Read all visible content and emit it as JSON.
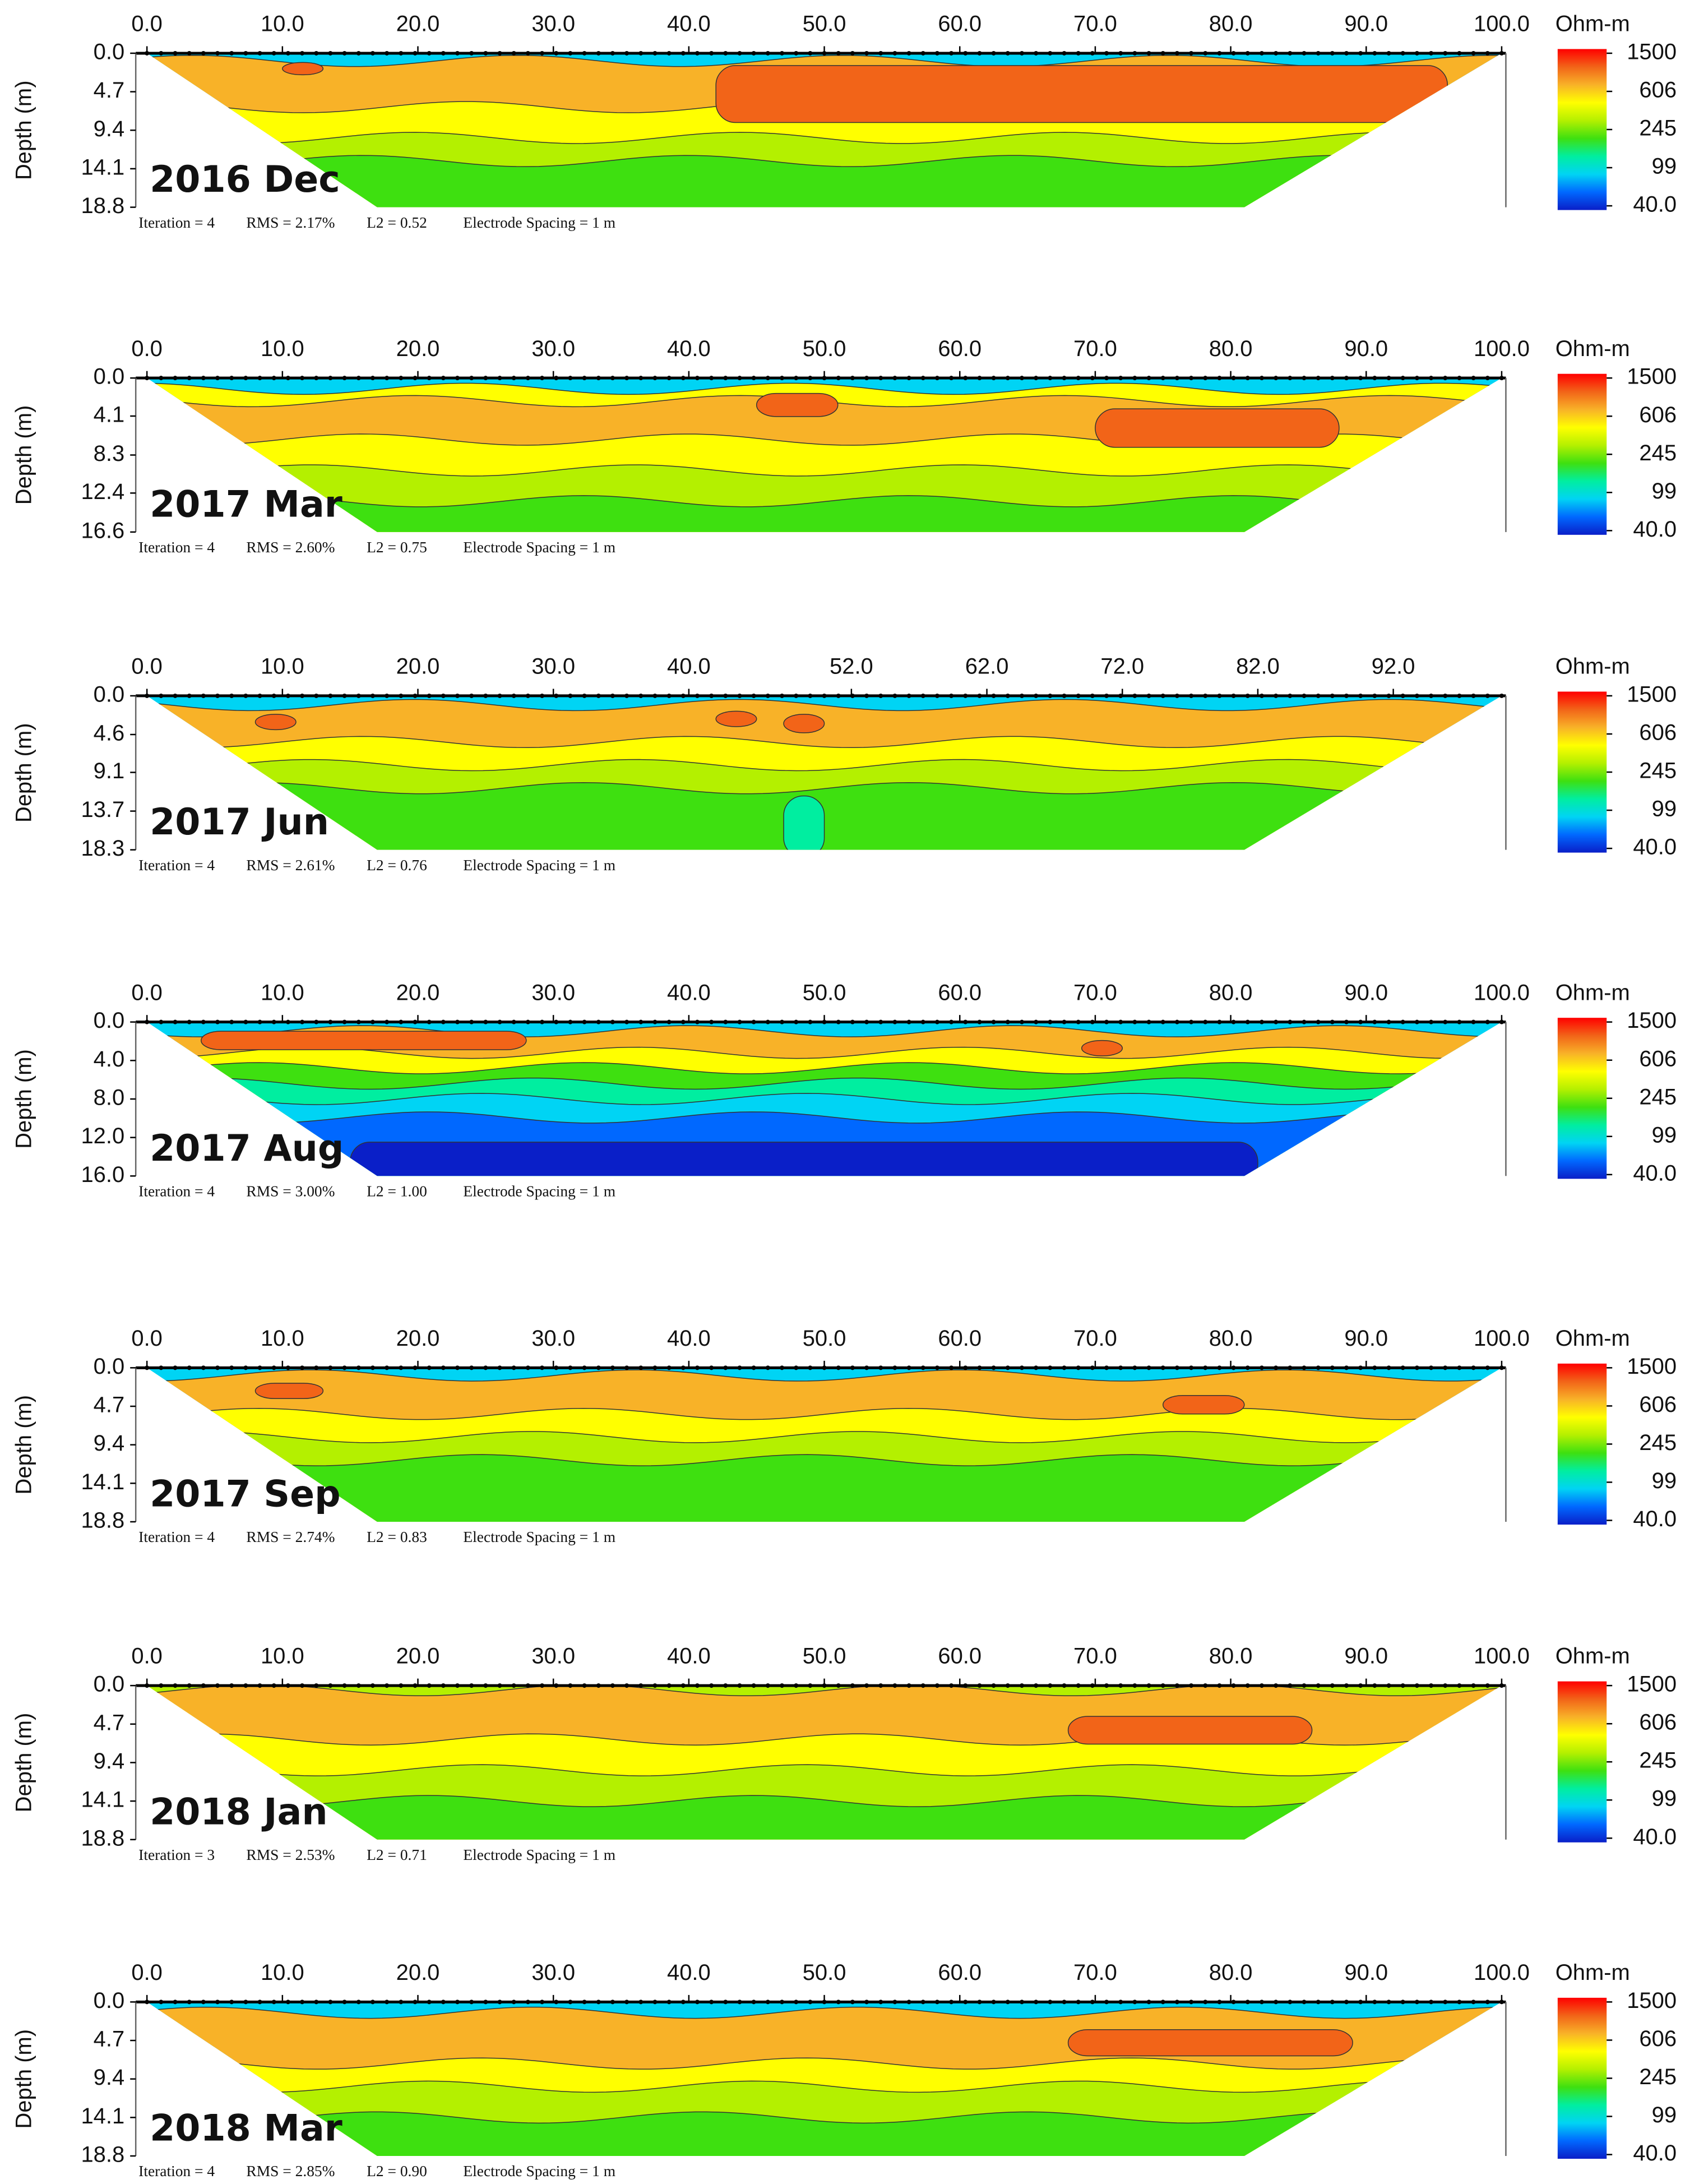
{
  "chart_data": [
    {
      "type": "contour",
      "title": "2016 Dec",
      "y_label": "Depth (m)",
      "xlim": [
        0,
        100
      ],
      "ylim": [
        0,
        18.8
      ],
      "xticks": [
        {
          "value": 0,
          "label": "0.0"
        },
        {
          "value": 10,
          "label": "10.0"
        },
        {
          "value": 20,
          "label": "20.0"
        },
        {
          "value": 30,
          "label": "30.0"
        },
        {
          "value": 40,
          "label": "40.0"
        },
        {
          "value": 50,
          "label": "50.0"
        },
        {
          "value": 60,
          "label": "60.0"
        },
        {
          "value": 70,
          "label": "70.0"
        },
        {
          "value": 80,
          "label": "80.0"
        },
        {
          "value": 90,
          "label": "90.0"
        },
        {
          "value": 100,
          "label": "100.0"
        }
      ],
      "yticks": [
        {
          "value": 0,
          "label": "0.0"
        },
        4.7,
        9.4,
        14.1,
        18.8
      ],
      "footnote": [
        "Iteration = 4",
        "RMS = 2.17%",
        "L2 = 0.52",
        "Electrode Spacing = 1 m"
      ],
      "colorbar": {
        "label": "Ohm-m",
        "log": true,
        "lim": [
          40,
          1500
        ],
        "ticks": [
          {
            "value": 40,
            "label": "40.0"
          },
          99,
          245,
          606,
          1500
        ],
        "colors": [
          "#0a1fc8",
          "#0068ff",
          "#00d4f4",
          "#00eea0",
          "#3ee010",
          "#b4f000",
          "#ffff00",
          "#f8b228",
          "#f26418",
          "#ff0000"
        ]
      }
    },
    {
      "type": "contour",
      "title": "2017 Mar",
      "y_label": "Depth (m)",
      "xlim": [
        0,
        100
      ],
      "ylim": [
        0,
        16.6
      ],
      "xticks": [
        {
          "value": 0,
          "label": "0.0"
        },
        {
          "value": 10,
          "label": "10.0"
        },
        {
          "value": 20,
          "label": "20.0"
        },
        {
          "value": 30,
          "label": "30.0"
        },
        {
          "value": 40,
          "label": "40.0"
        },
        {
          "value": 50,
          "label": "50.0"
        },
        {
          "value": 60,
          "label": "60.0"
        },
        {
          "value": 70,
          "label": "70.0"
        },
        {
          "value": 80,
          "label": "80.0"
        },
        {
          "value": 90,
          "label": "90.0"
        },
        {
          "value": 100,
          "label": "100.0"
        }
      ],
      "yticks": [
        {
          "value": 0,
          "label": "0.0"
        },
        4.1,
        8.3,
        12.4,
        16.6
      ],
      "footnote": [
        "Iteration = 4",
        "RMS = 2.60%",
        "L2 = 0.75",
        "Electrode Spacing = 1 m"
      ],
      "colorbar": {
        "label": "Ohm-m",
        "log": true,
        "lim": [
          40,
          1500
        ],
        "ticks": [
          {
            "value": 40,
            "label": "40.0"
          },
          99,
          245,
          606,
          1500
        ],
        "colors": [
          "#0a1fc8",
          "#0068ff",
          "#00d4f4",
          "#00eea0",
          "#3ee010",
          "#b4f000",
          "#ffff00",
          "#f8b228",
          "#f26418",
          "#ff0000"
        ]
      }
    },
    {
      "type": "contour",
      "title": "2017 Jun",
      "y_label": "Depth (m)",
      "xlim": [
        0,
        100
      ],
      "ylim": [
        0,
        18.3
      ],
      "xticks": [
        {
          "value": 0,
          "label": "0.0"
        },
        {
          "value": 10,
          "label": "10.0"
        },
        {
          "value": 20,
          "label": "20.0"
        },
        {
          "value": 30,
          "label": "30.0"
        },
        {
          "value": 40,
          "label": "40.0"
        },
        {
          "value": 52,
          "label": "52.0"
        },
        {
          "value": 62,
          "label": "62.0"
        },
        {
          "value": 72,
          "label": "72.0"
        },
        {
          "value": 82,
          "label": "82.0"
        },
        {
          "value": 92,
          "label": "92.0"
        }
      ],
      "yticks": [
        {
          "value": 0,
          "label": "0.0"
        },
        4.6,
        9.1,
        13.7,
        18.3
      ],
      "footnote": [
        "Iteration = 4",
        "RMS = 2.61%",
        "L2 = 0.76",
        "Electrode Spacing = 1 m"
      ],
      "colorbar": {
        "label": "Ohm-m",
        "log": true,
        "lim": [
          40,
          1500
        ],
        "ticks": [
          {
            "value": 40,
            "label": "40.0"
          },
          99,
          245,
          606,
          1500
        ],
        "colors": [
          "#0a1fc8",
          "#0068ff",
          "#00d4f4",
          "#00eea0",
          "#3ee010",
          "#b4f000",
          "#ffff00",
          "#f8b228",
          "#f26418",
          "#ff0000"
        ]
      }
    },
    {
      "type": "contour",
      "title": "2017 Aug",
      "y_label": "Depth (m)",
      "xlim": [
        0,
        100
      ],
      "ylim": [
        0,
        16
      ],
      "xticks": [
        {
          "value": 0,
          "label": "0.0"
        },
        {
          "value": 10,
          "label": "10.0"
        },
        {
          "value": 20,
          "label": "20.0"
        },
        {
          "value": 30,
          "label": "30.0"
        },
        {
          "value": 40,
          "label": "40.0"
        },
        {
          "value": 50,
          "label": "50.0"
        },
        {
          "value": 60,
          "label": "60.0"
        },
        {
          "value": 70,
          "label": "70.0"
        },
        {
          "value": 80,
          "label": "80.0"
        },
        {
          "value": 90,
          "label": "90.0"
        },
        {
          "value": 100,
          "label": "100.0"
        }
      ],
      "yticks": [
        {
          "value": 0,
          "label": "0.0"
        },
        {
          "value": 4,
          "label": "4.0"
        },
        {
          "value": 8,
          "label": "8.0"
        },
        {
          "value": 12,
          "label": "12.0"
        },
        {
          "value": 16,
          "label": "16.0"
        }
      ],
      "footnote": [
        "Iteration = 4",
        "RMS = 3.00%",
        "L2 = 1.00",
        "Electrode Spacing = 1 m"
      ],
      "colorbar": {
        "label": "Ohm-m",
        "log": true,
        "lim": [
          40,
          1500
        ],
        "ticks": [
          {
            "value": 40,
            "label": "40.0"
          },
          99,
          245,
          606,
          1500
        ],
        "colors": [
          "#0a1fc8",
          "#0068ff",
          "#00d4f4",
          "#00eea0",
          "#3ee010",
          "#b4f000",
          "#ffff00",
          "#f8b228",
          "#f26418",
          "#ff0000"
        ]
      }
    },
    {
      "type": "contour",
      "title": "2017 Sep",
      "y_label": "Depth (m)",
      "xlim": [
        0,
        100
      ],
      "ylim": [
        0,
        18.8
      ],
      "xticks": [
        {
          "value": 0,
          "label": "0.0"
        },
        {
          "value": 10,
          "label": "10.0"
        },
        {
          "value": 20,
          "label": "20.0"
        },
        {
          "value": 30,
          "label": "30.0"
        },
        {
          "value": 40,
          "label": "40.0"
        },
        {
          "value": 50,
          "label": "50.0"
        },
        {
          "value": 60,
          "label": "60.0"
        },
        {
          "value": 70,
          "label": "70.0"
        },
        {
          "value": 80,
          "label": "80.0"
        },
        {
          "value": 90,
          "label": "90.0"
        },
        {
          "value": 100,
          "label": "100.0"
        }
      ],
      "yticks": [
        {
          "value": 0,
          "label": "0.0"
        },
        4.7,
        9.4,
        14.1,
        18.8
      ],
      "footnote": [
        "Iteration = 4",
        "RMS = 2.74%",
        "L2 = 0.83",
        "Electrode Spacing = 1 m"
      ],
      "colorbar": {
        "label": "Ohm-m",
        "log": true,
        "lim": [
          40,
          1500
        ],
        "ticks": [
          {
            "value": 40,
            "label": "40.0"
          },
          99,
          245,
          606,
          1500
        ],
        "colors": [
          "#0a1fc8",
          "#0068ff",
          "#00d4f4",
          "#00eea0",
          "#3ee010",
          "#b4f000",
          "#ffff00",
          "#f8b228",
          "#f26418",
          "#ff0000"
        ]
      }
    },
    {
      "type": "contour",
      "title": "2018 Jan",
      "y_label": "Depth (m)",
      "xlim": [
        0,
        100
      ],
      "ylim": [
        0,
        18.8
      ],
      "xticks": [
        {
          "value": 0,
          "label": "0.0"
        },
        {
          "value": 10,
          "label": "10.0"
        },
        {
          "value": 20,
          "label": "20.0"
        },
        {
          "value": 30,
          "label": "30.0"
        },
        {
          "value": 40,
          "label": "40.0"
        },
        {
          "value": 50,
          "label": "50.0"
        },
        {
          "value": 60,
          "label": "60.0"
        },
        {
          "value": 70,
          "label": "70.0"
        },
        {
          "value": 80,
          "label": "80.0"
        },
        {
          "value": 90,
          "label": "90.0"
        },
        {
          "value": 100,
          "label": "100.0"
        }
      ],
      "yticks": [
        {
          "value": 0,
          "label": "0.0"
        },
        4.7,
        9.4,
        14.1,
        18.8
      ],
      "footnote": [
        "Iteration = 3",
        "RMS = 2.53%",
        "L2 = 0.71",
        "Electrode Spacing = 1 m"
      ],
      "colorbar": {
        "label": "Ohm-m",
        "log": true,
        "lim": [
          40,
          1500
        ],
        "ticks": [
          {
            "value": 40,
            "label": "40.0"
          },
          99,
          245,
          606,
          1500
        ],
        "colors": [
          "#0a1fc8",
          "#0068ff",
          "#00d4f4",
          "#00eea0",
          "#3ee010",
          "#b4f000",
          "#ffff00",
          "#f8b228",
          "#f26418",
          "#ff0000"
        ]
      }
    },
    {
      "type": "contour",
      "title": "2018 Mar",
      "y_label": "Depth (m)",
      "xlim": [
        0,
        100
      ],
      "ylim": [
        0,
        18.8
      ],
      "xticks": [
        {
          "value": 0,
          "label": "0.0"
        },
        {
          "value": 10,
          "label": "10.0"
        },
        {
          "value": 20,
          "label": "20.0"
        },
        {
          "value": 30,
          "label": "30.0"
        },
        {
          "value": 40,
          "label": "40.0"
        },
        {
          "value": 50,
          "label": "50.0"
        },
        {
          "value": 60,
          "label": "60.0"
        },
        {
          "value": 70,
          "label": "70.0"
        },
        {
          "value": 80,
          "label": "80.0"
        },
        {
          "value": 90,
          "label": "90.0"
        },
        {
          "value": 100,
          "label": "100.0"
        }
      ],
      "yticks": [
        {
          "value": 0,
          "label": "0.0"
        },
        4.7,
        9.4,
        14.1,
        18.8
      ],
      "footnote": [
        "Iteration = 4",
        "RMS = 2.85%",
        "L2 = 0.90",
        "Electrode Spacing = 1 m"
      ],
      "colorbar": {
        "label": "Ohm-m",
        "log": true,
        "lim": [
          40,
          1500
        ],
        "ticks": [
          {
            "value": 40,
            "label": "40.0"
          },
          99,
          245,
          606,
          1500
        ],
        "colors": [
          "#0a1fc8",
          "#0068ff",
          "#00d4f4",
          "#00eea0",
          "#3ee010",
          "#b4f000",
          "#ffff00",
          "#f8b228",
          "#f26418",
          "#ff0000"
        ]
      }
    }
  ]
}
